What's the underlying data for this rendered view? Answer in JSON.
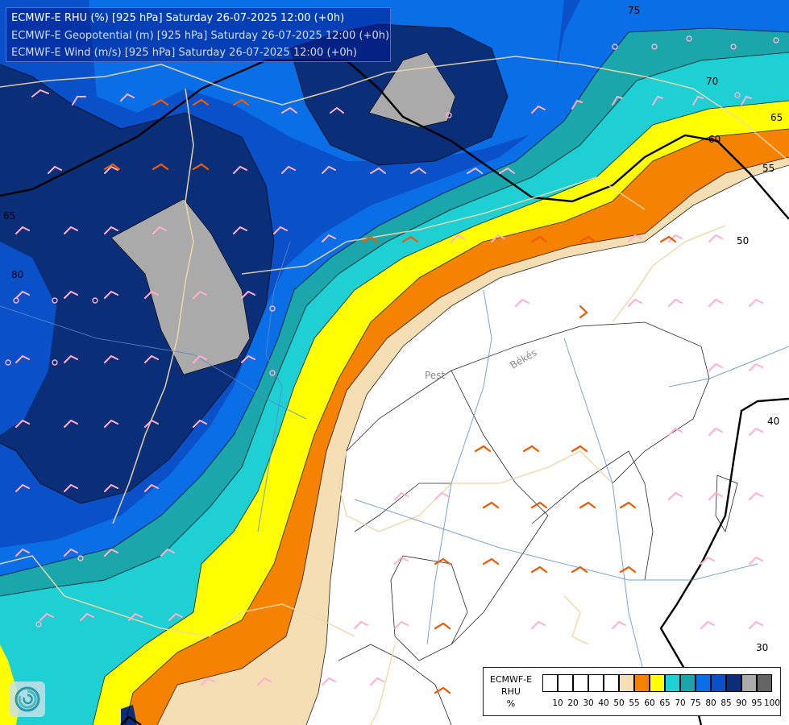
{
  "titles": {
    "line1": "ECMWF-E RHU (%) [925 hPa] Saturday 26-07-2025 12:00 (+0h)",
    "line2": "ECMWF-E Geopotential (m) [925 hPa] Saturday 26-07-2025 12:00 (+0h)",
    "line3": "ECMWF-E Wind (m/s) [925 hPa] Saturday 26-07-2025 12:00 (+0h)"
  },
  "legend": {
    "model": "ECMWF-E",
    "variable": "RHU",
    "unit": "%",
    "colors": [
      "#ffffff",
      "#ffffff",
      "#ffffff",
      "#ffffff",
      "#ffffff",
      "#f5deb3",
      "#f58200",
      "#ffff00",
      "#1ecfd4",
      "#1aa6aa",
      "#0a6ee6",
      "#0a50c8",
      "#0a2e78",
      "#aaaaaa",
      "#646464"
    ],
    "ticks": [
      "10",
      "20",
      "30",
      "40",
      "50",
      "55",
      "60",
      "65",
      "70",
      "75",
      "80",
      "85",
      "90",
      "95",
      "100"
    ]
  },
  "contours": {
    "geopotential_labels": [
      "75",
      "70",
      "65",
      "60",
      "55",
      "50",
      "40",
      "30",
      "65",
      "80"
    ]
  },
  "places": {
    "pest": "Pest",
    "bekes": "Békés"
  },
  "colors": {
    "rhu_90": "#0a2e78",
    "rhu_85": "#0a50c8",
    "rhu_80": "#0a6ee6",
    "rhu_75": "#1aa6aa",
    "rhu_70": "#1ecfd4",
    "rhu_65": "#ffff00",
    "rhu_60": "#f58200",
    "rhu_55": "#f5deb3",
    "rhu_95": "#aaaaaa",
    "wind_barb_light": "#ffb0d0",
    "wind_barb_strong": "#f05a00",
    "borders": "#f0d8a8",
    "rivers": "#5a8ac8"
  },
  "icons": {
    "logo": "ecmwf-swirl-logo"
  }
}
